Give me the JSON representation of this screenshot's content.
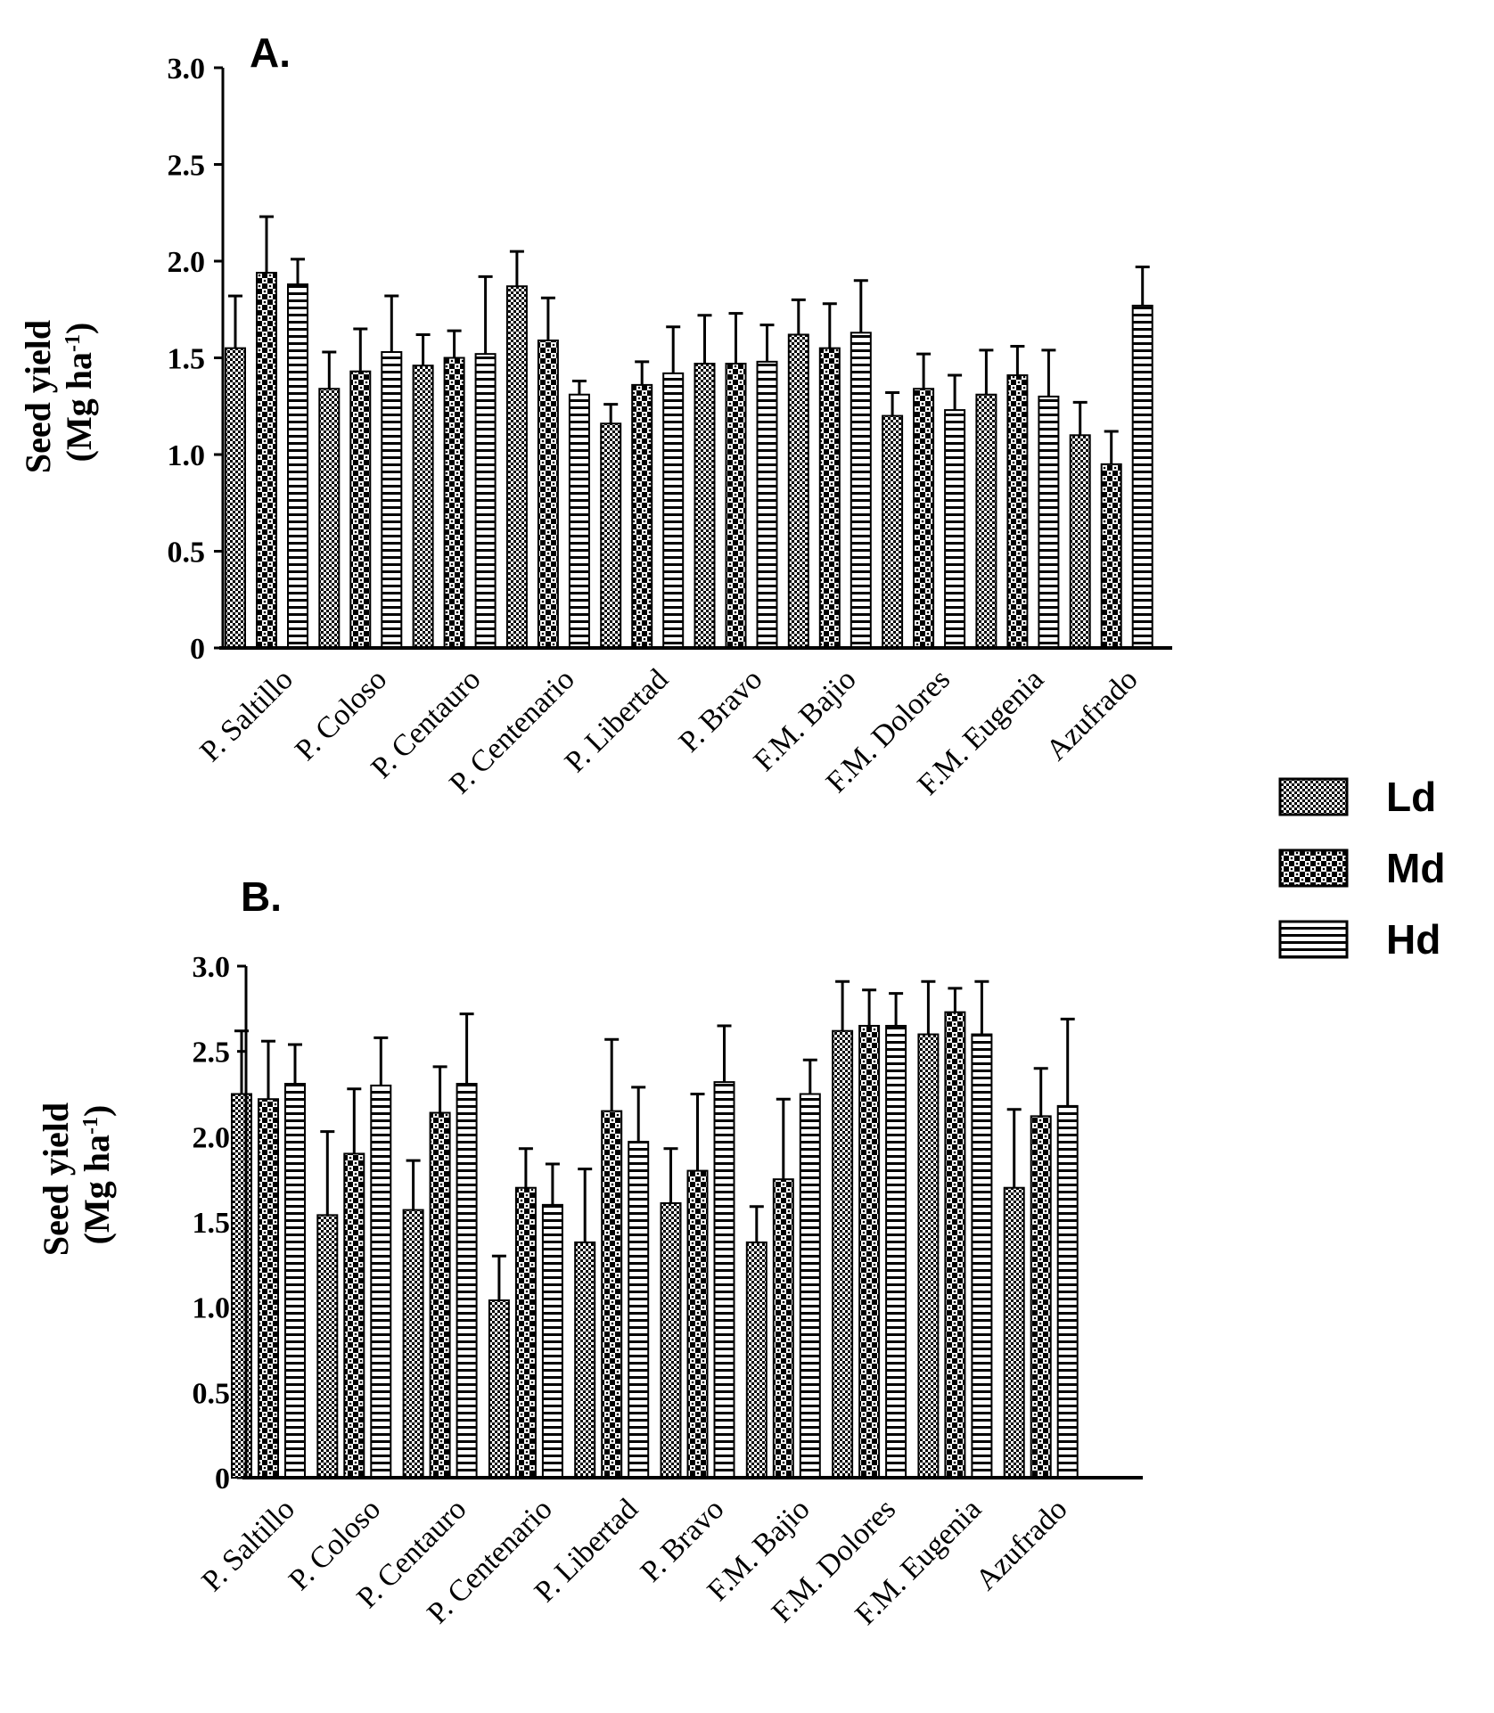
{
  "legend": [
    {
      "name": "Ld",
      "pattern": "fine-dots"
    },
    {
      "name": "Md",
      "pattern": "checker"
    },
    {
      "name": "Hd",
      "pattern": "horizontal-lines"
    }
  ],
  "colors": {
    "ink": "#000000",
    "background": "#ffffff"
  },
  "chart_data": [
    {
      "type": "bar",
      "panel_label": "A.",
      "ylabel_line1": "Seed yield",
      "ylabel_line2": "(Mg ha",
      "ylabel_sup": "-1",
      "ylabel_close": ")",
      "ylim": [
        0,
        3.0
      ],
      "yticks": [
        0,
        0.5,
        1.0,
        1.5,
        2.0,
        2.5,
        3.0
      ],
      "ytick_labels": [
        "0",
        "0.5",
        "1.0",
        "1.5",
        "2.0",
        "2.5",
        "3.0"
      ],
      "categories": [
        "P. Saltillo",
        "P. Coloso",
        "P. Centauro",
        "P. Centenario",
        "P. Libertad",
        "P. Bravo",
        "F.M. Bajio",
        "F.M. Dolores",
        "F.M. Eugenia",
        "Azufrado"
      ],
      "series": [
        {
          "name": "Ld",
          "values": [
            1.55,
            1.34,
            1.46,
            1.87,
            1.16,
            1.47,
            1.62,
            1.2,
            1.31,
            1.1
          ],
          "errors": [
            0.27,
            0.19,
            0.16,
            0.18,
            0.1,
            0.25,
            0.18,
            0.12,
            0.23,
            0.17
          ]
        },
        {
          "name": "Md",
          "values": [
            1.94,
            1.43,
            1.5,
            1.59,
            1.36,
            1.47,
            1.55,
            1.34,
            1.41,
            0.95
          ],
          "errors": [
            0.29,
            0.22,
            0.14,
            0.22,
            0.12,
            0.26,
            0.23,
            0.18,
            0.15,
            0.17
          ]
        },
        {
          "name": "Hd",
          "values": [
            1.88,
            1.53,
            1.52,
            1.31,
            1.42,
            1.48,
            1.63,
            1.23,
            1.3,
            1.77
          ],
          "errors": [
            0.13,
            0.29,
            0.4,
            0.07,
            0.24,
            0.19,
            0.27,
            0.18,
            0.24,
            0.2
          ]
        }
      ]
    },
    {
      "type": "bar",
      "panel_label": "B.",
      "ylabel_line1": "Seed yield",
      "ylabel_line2": "(Mg ha",
      "ylabel_sup": "-1",
      "ylabel_close": ")",
      "ylim": [
        0,
        3.0
      ],
      "yticks": [
        0,
        0.5,
        1.0,
        1.5,
        2.0,
        2.5,
        3.0
      ],
      "ytick_labels": [
        "0",
        "0.5",
        "1.0",
        "1.5",
        "2.0",
        "2.5",
        "3.0"
      ],
      "categories": [
        "P. Saltillo",
        "P. Coloso",
        "P. Centauro",
        "P. Centenario",
        "P. Libertad",
        "P. Bravo",
        "F.M. Bajio",
        "F.M. Dolores",
        "F.M. Eugenia",
        "Azufrado"
      ],
      "series": [
        {
          "name": "Ld",
          "values": [
            2.25,
            1.54,
            1.57,
            1.04,
            1.38,
            1.61,
            1.38,
            2.62,
            2.6,
            1.7
          ],
          "errors": [
            0.37,
            0.49,
            0.29,
            0.26,
            0.43,
            0.32,
            0.21,
            0.29,
            0.31,
            0.46
          ]
        },
        {
          "name": "Md",
          "values": [
            2.22,
            1.9,
            2.14,
            1.7,
            2.15,
            1.8,
            1.75,
            2.65,
            2.73,
            2.12
          ],
          "errors": [
            0.34,
            0.38,
            0.27,
            0.23,
            0.42,
            0.45,
            0.47,
            0.21,
            0.14,
            0.28
          ]
        },
        {
          "name": "Hd",
          "values": [
            2.31,
            2.3,
            2.31,
            1.6,
            1.97,
            2.32,
            2.25,
            2.65,
            2.6,
            2.18
          ],
          "errors": [
            0.23,
            0.28,
            0.41,
            0.24,
            0.32,
            0.33,
            0.2,
            0.19,
            0.31,
            0.51
          ]
        }
      ]
    }
  ]
}
